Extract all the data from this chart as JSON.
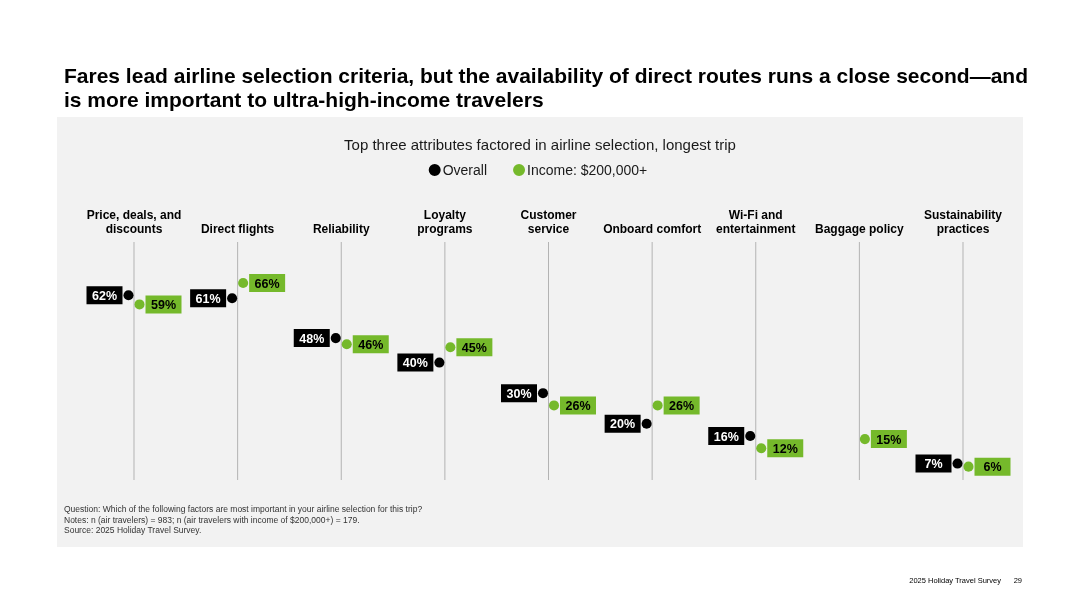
{
  "chart_data": {
    "type": "scatter",
    "title": "Fares lead airline selection criteria, but the availability of direct routes runs a close second—and is more important to ultra-high-income travelers",
    "subtitle": "Top three attributes factored in airline selection, longest trip",
    "categories": [
      "Price, deals, and discounts",
      "Direct flights",
      "Reliability",
      "Loyalty programs",
      "Customer service",
      "Onboard comfort",
      "Wi-Fi and entertainment",
      "Baggage policy",
      "Sustainability practices"
    ],
    "series": [
      {
        "name": "Overall",
        "color": "#000000",
        "values": [
          62,
          61,
          48,
          40,
          30,
          20,
          16,
          null,
          7
        ],
        "value_labels": [
          "62%",
          "61%",
          "48%",
          "40%",
          "30%",
          "20%",
          "16%",
          null,
          "7%"
        ]
      },
      {
        "name": "Income: $200,000+",
        "color": "#75b92b",
        "values": [
          59,
          66,
          46,
          45,
          26,
          26,
          12,
          15,
          6
        ],
        "value_labels": [
          "59%",
          "66%",
          "46%",
          "45%",
          "26%",
          "26%",
          "12%",
          "15%",
          "6%"
        ]
      }
    ],
    "marker": "circle",
    "grid": "x",
    "legend": "top",
    "annotations": [
      "Question: Which of the following factors are most important in your airline selection for this trip?",
      "Notes: n (air travelers) = 983; n (air travelers with income of $200,000+) = 179.",
      "Source: 2025 Holiday Travel Survey.",
      "2025 Holiday Travel Survey",
      "29"
    ]
  }
}
